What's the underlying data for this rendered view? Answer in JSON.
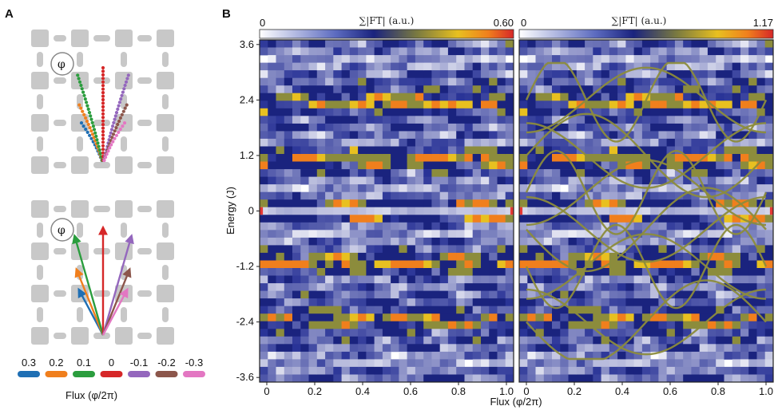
{
  "panels": {
    "a": "A",
    "b": "B"
  },
  "phi_symbol": "φ",
  "colors": {
    "grid": "#c8c8c8",
    "heat_dark": "#1a237e",
    "band": "#8c8c3c",
    "hot_red": "#e53935"
  },
  "legend_a": {
    "title": "Flux (φ/2π)",
    "entries": [
      {
        "label": "0.3",
        "color": "#1f6fb4"
      },
      {
        "label": "0.2",
        "color": "#f07f1d"
      },
      {
        "label": "0.1",
        "color": "#2b9d3e"
      },
      {
        "label": "0",
        "color": "#d62728"
      },
      {
        "label": "-0.1",
        "color": "#9467bd"
      },
      {
        "label": "-0.2",
        "color": "#8c564b"
      },
      {
        "label": "-0.3",
        "color": "#e377c2"
      }
    ]
  },
  "arrows": [
    {
      "flux": 0.3,
      "angle_deg": -28,
      "len": 0.48
    },
    {
      "flux": 0.2,
      "angle_deg": -22,
      "len": 0.66
    },
    {
      "flux": 0.1,
      "angle_deg": -16,
      "len": 0.96
    },
    {
      "flux": 0,
      "angle_deg": 0,
      "len": 1.0
    },
    {
      "flux": -0.1,
      "angle_deg": 16,
      "len": 0.96
    },
    {
      "flux": -0.2,
      "angle_deg": 22,
      "len": 0.66
    },
    {
      "flux": -0.3,
      "angle_deg": 28,
      "len": 0.48
    }
  ],
  "chart_data": [
    {
      "type": "heatmap",
      "title": "∑|FT| (a.u.)",
      "colorbar_min": "0",
      "colorbar_max": "0.60",
      "xlabel": "Flux (φ/2π)",
      "ylabel": "Energy (J)",
      "xlim": [
        -0.03,
        1.03
      ],
      "ylim": [
        -3.7,
        3.7
      ],
      "xticks": [
        "0",
        "0.2",
        "0.4",
        "0.6",
        "0.8",
        "1.0"
      ],
      "yticks": [
        "3.6",
        "2.4",
        "1.2",
        "0",
        "-1.2",
        "-2.4",
        "-3.6"
      ],
      "bands_overlay": false
    },
    {
      "type": "heatmap",
      "title": "∑|FT| (a.u.)",
      "colorbar_min": "0",
      "colorbar_max": "1.17",
      "xlabel": "Flux (φ/2π)",
      "xlim": [
        -0.03,
        1.03
      ],
      "ylim": [
        -3.7,
        3.7
      ],
      "xticks": [
        "0",
        "0.2",
        "0.4",
        "0.6",
        "0.8",
        "1.0"
      ],
      "bands_overlay": true
    }
  ]
}
